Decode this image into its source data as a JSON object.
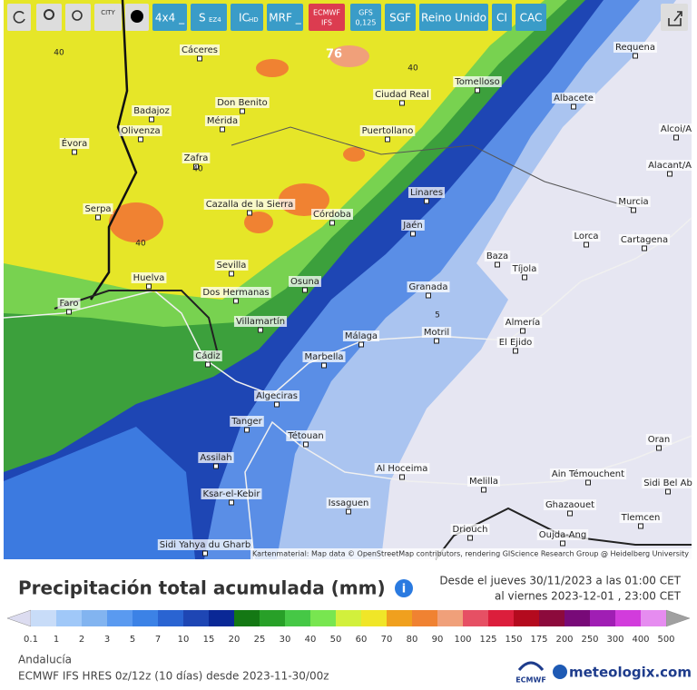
{
  "toolbar": {
    "city": "CITY",
    "buttons": [
      {
        "text": "4x4 _"
      },
      {
        "text": "S",
        "sub": "EZ4"
      },
      {
        "text": "IC",
        "sub": "HD"
      },
      {
        "text": "MRF _"
      },
      {
        "text": "ECMWF",
        "sub": "IFS"
      },
      {
        "text": "GFS",
        "sub": "0,125"
      },
      {
        "text": "SGF"
      },
      {
        "text": "Reino Unido"
      },
      {
        "text": "CI"
      },
      {
        "text": "CAC"
      }
    ]
  },
  "map": {
    "places": [
      "Cáceres",
      "Requena",
      "Tomelloso",
      "Albacete",
      "Ciudad Real",
      "Badajoz",
      "Don Benito",
      "Mérida",
      "Olivenza",
      "Évora",
      "Puertollano",
      "Zafra",
      "Alcoi/A",
      "Alacant/A",
      "Linares",
      "Murcia",
      "Cazalla de la Sierra",
      "Serpa",
      "Córdoba",
      "Jaén",
      "Lorca",
      "Cartagena",
      "Baza",
      "Tíjola",
      "Sevilla",
      "Huelva",
      "Osuna",
      "Dos Hermanas",
      "Granada",
      "Faro",
      "Almería",
      "Villamartín",
      "Málaga",
      "Motril",
      "El Ejido",
      "Cádiz",
      "Marbella",
      "Algeciras",
      "Tanger",
      "Tétouan",
      "Assilah",
      "Al Hoceima",
      "Melilla",
      "Ain Témouchent",
      "Oran",
      "Sidi Bel Ab",
      "Ksar-el-Kebir",
      "Issaguen",
      "Ghazaouet",
      "Tlemcen",
      "Driouch",
      "Oujda-Ang",
      "Sidi Yahya du Gharb"
    ],
    "contour_labels": [
      76,
      40,
      40,
      40,
      40,
      5
    ],
    "attribution": "Kartenmaterial: Map data © OpenStreetMap contributors, rendering GIScience Research Group @ Heidelberg University"
  },
  "header": {
    "title": "Precipitación total acumulada (mm)",
    "info": "i",
    "date_from": "Desde el jueves 30/11/2023 a  las 01:00  CET",
    "date_to": "al viernes 2023-12-01 , 23:00  CET"
  },
  "legend": {
    "stops": [
      0.1,
      1,
      2,
      3,
      5,
      7,
      10,
      15,
      20,
      25,
      30,
      40,
      50,
      60,
      70,
      80,
      90,
      100,
      125,
      150,
      175,
      200,
      250,
      300,
      400,
      500
    ],
    "colors": [
      "#c8dcf8",
      "#a0c8f8",
      "#82b4f0",
      "#5a9af0",
      "#3c82e6",
      "#2a64d2",
      "#1e46b4",
      "#0a2896",
      "#147814",
      "#28a028",
      "#46c846",
      "#78e650",
      "#d2f03c",
      "#f0e628",
      "#f0a01e",
      "#f08232",
      "#f0a07a",
      "#e65064",
      "#dc1e3c",
      "#b40a1e",
      "#8c0a3c",
      "#780a78",
      "#a01eb4",
      "#d23cdc",
      "#e68cf0"
    ]
  },
  "footer": {
    "region": "Andalucía",
    "model": "ECMWF IFS HRES 0z/12z (10 días) desde 2023-11-30/00z",
    "logo": "ECMWF",
    "brand": "meteologix.com"
  }
}
